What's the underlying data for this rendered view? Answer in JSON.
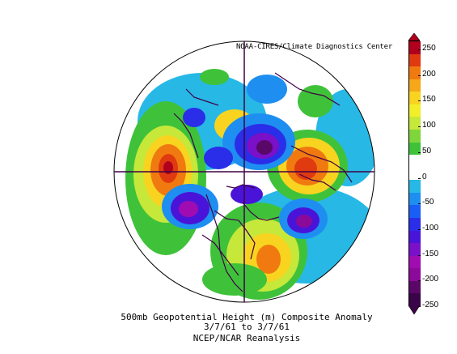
{
  "credit": "NOAA-CIRES/Climate Diagnostics Center",
  "caption": {
    "line1": "500mb Geopotential Height (m) Composite Anomaly",
    "line2": "3/7/61  to 3/7/61",
    "line3": "NCEP/NCAR Reanalysis"
  },
  "colorbar": {
    "labels": [
      "250",
      "200",
      "150",
      "100",
      "50",
      "0",
      "-50",
      "-100",
      "-150",
      "-200",
      "-250"
    ],
    "colors": [
      "#b0001e",
      "#e03a10",
      "#f07a10",
      "#f5a81a",
      "#f8d420",
      "#f2ef2a",
      "#c6e83a",
      "#7fd63a",
      "#3fc23a",
      "#ffffff",
      "#ffffff",
      "#27b8e6",
      "#1e8ef0",
      "#1a5ef5",
      "#2a2ee8",
      "#4a14d8",
      "#7a10c8",
      "#a00cb2",
      "#8c0a9a",
      "#5a0868",
      "#3a0548"
    ]
  },
  "map": {
    "background_color": "#ffffff",
    "ocean_fill": "#ffffff",
    "coast_color": "#400046",
    "axis_color": "#400046"
  }
}
